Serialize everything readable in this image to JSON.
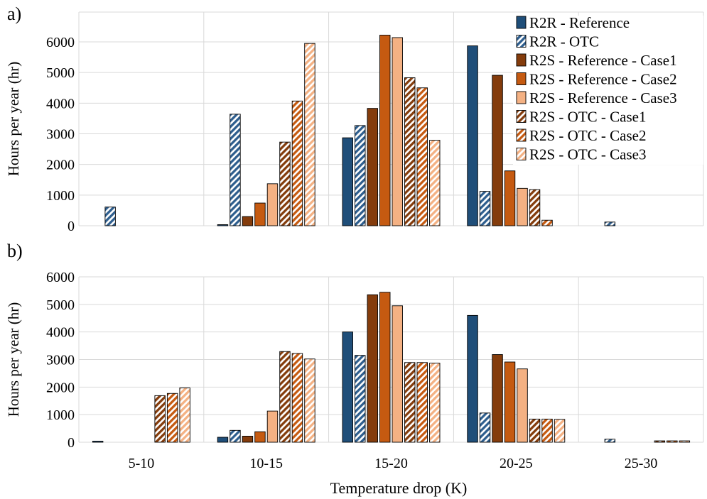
{
  "chart_data": [
    {
      "type": "bar",
      "panel_label": "a)",
      "categories": [
        "5-10",
        "10-15",
        "15-20",
        "20-25",
        "25-30"
      ],
      "ylabel": "Hours per year (hr)",
      "xlabel": "",
      "ylim": [
        0,
        6000
      ],
      "yticks": [
        0,
        1000,
        2000,
        3000,
        4000,
        5000,
        6000
      ],
      "grid": true,
      "legend_position": "top-right",
      "series": [
        {
          "name": "R2R - Reference",
          "color": "#1f4e79",
          "pattern": "solid",
          "values": [
            0,
            20,
            2870,
            5870,
            0
          ]
        },
        {
          "name": "R2R - OTC",
          "color": "#2e5e8e",
          "pattern": "hatch",
          "values": [
            610,
            3640,
            3270,
            1120,
            120
          ]
        },
        {
          "name": "R2S - Reference - Case1",
          "color": "#843c0c",
          "pattern": "solid",
          "values": [
            0,
            300,
            3830,
            4910,
            0
          ]
        },
        {
          "name": "R2S - Reference - Case2",
          "color": "#c55a11",
          "pattern": "solid",
          "values": [
            0,
            740,
            6220,
            1790,
            0
          ]
        },
        {
          "name": "R2S - Reference - Case3",
          "color": "#f4b183",
          "pattern": "solid",
          "values": [
            0,
            1370,
            6140,
            1220,
            0
          ]
        },
        {
          "name": "R2S - OTC - Case1",
          "color": "#843c0c",
          "pattern": "hatch",
          "values": [
            0,
            2730,
            4830,
            1180,
            0
          ]
        },
        {
          "name": "R2S - OTC - Case2",
          "color": "#c55a11",
          "pattern": "hatch",
          "values": [
            0,
            4070,
            4500,
            180,
            0
          ]
        },
        {
          "name": "R2S - OTC - Case3",
          "color": "#f4b183",
          "pattern": "hatch",
          "values": [
            0,
            5950,
            2790,
            0,
            0
          ]
        }
      ]
    },
    {
      "type": "bar",
      "panel_label": "b)",
      "categories": [
        "5-10",
        "10-15",
        "15-20",
        "20-25",
        "25-30"
      ],
      "ylabel": "Hours per year (hr)",
      "xlabel": "Temperature drop (K)",
      "ylim": [
        0,
        6000
      ],
      "yticks": [
        0,
        1000,
        2000,
        3000,
        4000,
        5000,
        6000
      ],
      "grid": true,
      "series": [
        {
          "name": "R2R - Reference",
          "color": "#1f4e79",
          "pattern": "solid",
          "values": [
            30,
            180,
            4000,
            4600,
            0
          ]
        },
        {
          "name": "R2R - OTC",
          "color": "#2e5e8e",
          "pattern": "hatch",
          "values": [
            0,
            430,
            3150,
            1060,
            110
          ]
        },
        {
          "name": "R2S - Reference - Case1",
          "color": "#843c0c",
          "pattern": "solid",
          "values": [
            0,
            220,
            5350,
            3180,
            0
          ]
        },
        {
          "name": "R2S - Reference - Case2",
          "color": "#c55a11",
          "pattern": "solid",
          "values": [
            0,
            380,
            5440,
            2910,
            0
          ]
        },
        {
          "name": "R2S - Reference - Case3",
          "color": "#f4b183",
          "pattern": "solid",
          "values": [
            0,
            1130,
            4950,
            2660,
            0
          ]
        },
        {
          "name": "R2S - OTC - Case1",
          "color": "#843c0c",
          "pattern": "hatch",
          "values": [
            1690,
            3290,
            2890,
            840,
            50
          ]
        },
        {
          "name": "R2S - OTC - Case2",
          "color": "#c55a11",
          "pattern": "hatch",
          "values": [
            1770,
            3220,
            2890,
            840,
            50
          ]
        },
        {
          "name": "R2S - OTC - Case3",
          "color": "#f4b183",
          "pattern": "hatch",
          "values": [
            1970,
            3020,
            2870,
            830,
            50
          ]
        }
      ]
    }
  ]
}
